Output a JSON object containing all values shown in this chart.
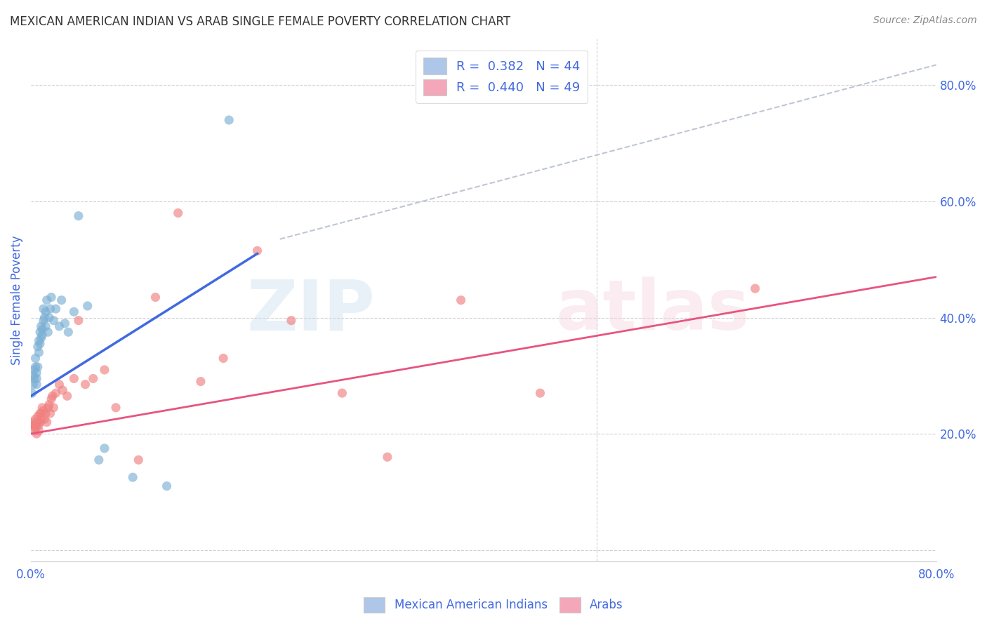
{
  "title": "MEXICAN AMERICAN INDIAN VS ARAB SINGLE FEMALE POVERTY CORRELATION CHART",
  "source": "Source: ZipAtlas.com",
  "ylabel": "Single Female Poverty",
  "xlim": [
    0,
    0.8
  ],
  "ylim": [
    -0.02,
    0.88
  ],
  "yticks_right": [
    0.0,
    0.2,
    0.4,
    0.6,
    0.8
  ],
  "yticklabels_right": [
    "",
    "20.0%",
    "40.0%",
    "60.0%",
    "80.0%"
  ],
  "legend_r1": "R =  0.382   N = 44",
  "legend_r2": "R =  0.440   N = 49",
  "legend_color1": "#aec6e8",
  "legend_color2": "#f4a7b9",
  "dot_color1": "#7bafd4",
  "dot_color2": "#f08080",
  "line_color1": "#4169e1",
  "line_color2": "#e75480",
  "diagonal_color": "#b0b8c8",
  "background": "#ffffff",
  "grid_color": "#d0d0d0",
  "title_color": "#333333",
  "source_color": "#888888",
  "axis_label_color": "#4169e1",
  "blue_dots_x": [
    0.001,
    0.002,
    0.002,
    0.003,
    0.003,
    0.004,
    0.004,
    0.005,
    0.005,
    0.005,
    0.006,
    0.006,
    0.007,
    0.007,
    0.008,
    0.008,
    0.009,
    0.009,
    0.01,
    0.01,
    0.011,
    0.011,
    0.012,
    0.013,
    0.013,
    0.014,
    0.015,
    0.016,
    0.017,
    0.018,
    0.02,
    0.022,
    0.025,
    0.027,
    0.03,
    0.033,
    0.038,
    0.042,
    0.05,
    0.06,
    0.065,
    0.09,
    0.12,
    0.175
  ],
  "blue_dots_y": [
    0.27,
    0.285,
    0.3,
    0.31,
    0.295,
    0.315,
    0.33,
    0.285,
    0.295,
    0.305,
    0.315,
    0.35,
    0.34,
    0.36,
    0.355,
    0.375,
    0.365,
    0.385,
    0.37,
    0.38,
    0.395,
    0.415,
    0.4,
    0.385,
    0.41,
    0.43,
    0.375,
    0.4,
    0.415,
    0.435,
    0.395,
    0.415,
    0.385,
    0.43,
    0.39,
    0.375,
    0.41,
    0.575,
    0.42,
    0.155,
    0.175,
    0.125,
    0.11,
    0.74
  ],
  "pink_dots_x": [
    0.001,
    0.002,
    0.003,
    0.003,
    0.004,
    0.004,
    0.005,
    0.005,
    0.006,
    0.006,
    0.007,
    0.007,
    0.008,
    0.008,
    0.009,
    0.009,
    0.01,
    0.011,
    0.012,
    0.013,
    0.014,
    0.015,
    0.016,
    0.017,
    0.018,
    0.019,
    0.02,
    0.022,
    0.025,
    0.028,
    0.032,
    0.038,
    0.042,
    0.048,
    0.055,
    0.065,
    0.075,
    0.095,
    0.11,
    0.13,
    0.15,
    0.17,
    0.2,
    0.23,
    0.275,
    0.315,
    0.38,
    0.45,
    0.64
  ],
  "pink_dots_y": [
    0.22,
    0.215,
    0.205,
    0.215,
    0.21,
    0.225,
    0.2,
    0.215,
    0.22,
    0.23,
    0.205,
    0.215,
    0.22,
    0.235,
    0.225,
    0.235,
    0.245,
    0.24,
    0.225,
    0.235,
    0.22,
    0.245,
    0.25,
    0.235,
    0.26,
    0.265,
    0.245,
    0.27,
    0.285,
    0.275,
    0.265,
    0.295,
    0.395,
    0.285,
    0.295,
    0.31,
    0.245,
    0.155,
    0.435,
    0.58,
    0.29,
    0.33,
    0.515,
    0.395,
    0.27,
    0.16,
    0.43,
    0.27,
    0.45
  ],
  "blue_line_x": [
    0.0,
    0.2
  ],
  "blue_line_y": [
    0.265,
    0.51
  ],
  "pink_line_x": [
    0.0,
    0.8
  ],
  "pink_line_y": [
    0.2,
    0.47
  ],
  "diag_line_x": [
    0.22,
    0.8
  ],
  "diag_line_y": [
    0.535,
    0.835
  ]
}
